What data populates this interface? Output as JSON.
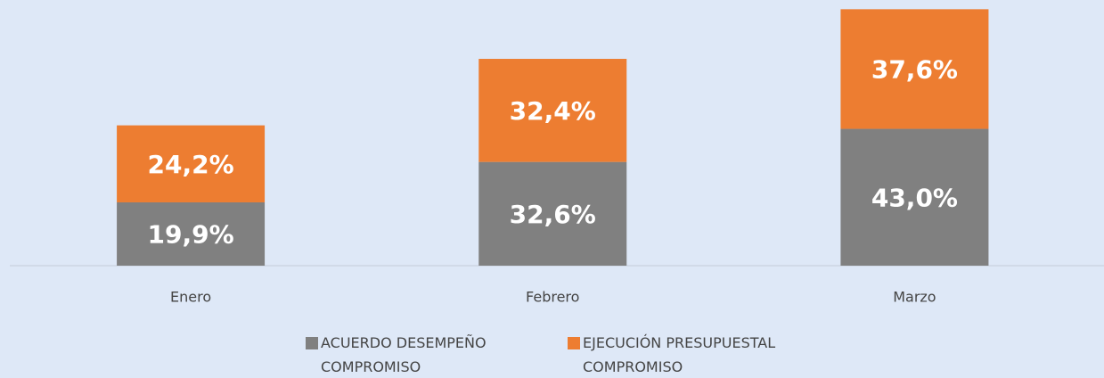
{
  "chart_data": {
    "type": "bar",
    "stacked": true,
    "categories": [
      "Enero",
      "Febrero",
      "Marzo"
    ],
    "series": [
      {
        "name": "ACUERDO DESEMPEÑO COMPROMISO",
        "color": "#808080",
        "values": [
          19.9,
          32.6,
          43.0
        ],
        "value_labels": [
          "19,9%",
          "32,6%",
          "43,0%"
        ]
      },
      {
        "name": "EJECUCIÓN PRESUPUESTAL COMPROMISO",
        "color": "#ed7d31",
        "values": [
          24.2,
          32.4,
          37.6
        ],
        "value_labels": [
          "24,2%",
          "32,4%",
          "37,6%"
        ]
      }
    ],
    "ylim": [
      0,
      83.5
    ],
    "grid": false,
    "legend": "bottom"
  }
}
